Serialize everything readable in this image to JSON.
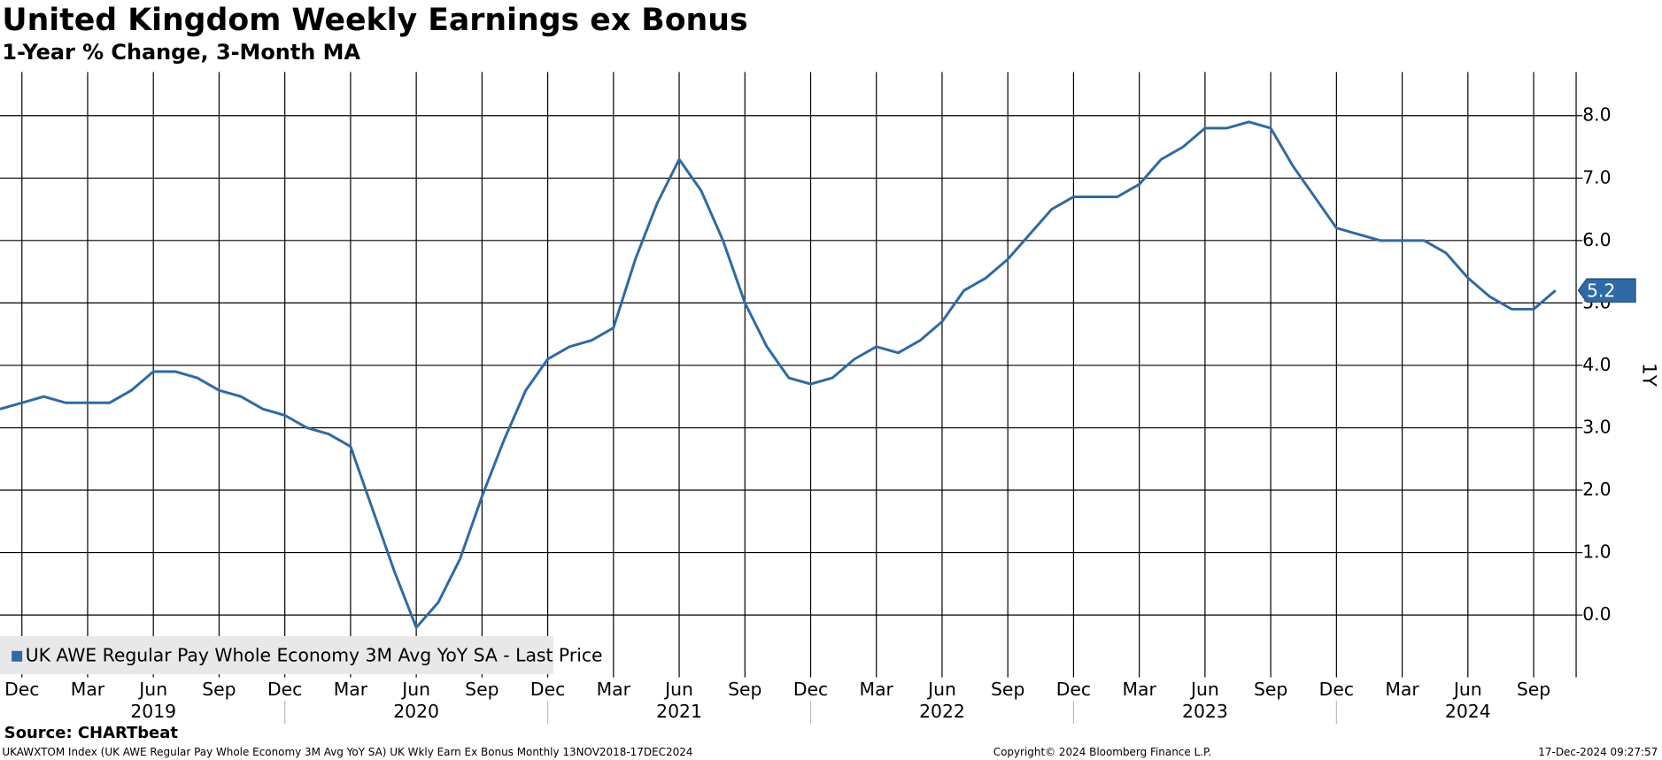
{
  "chart_data": {
    "type": "line",
    "title": "United Kingdom Weekly Earnings ex Bonus",
    "subtitle": "1-Year % Change, 3-Month MA",
    "y_axis_label": "1Y",
    "source": "Source: CHARTbeat",
    "footer_left": "UKAWXTOM Index (UK AWE Regular Pay Whole Economy 3M Avg YoY SA) UK Wkly Earn Ex Bonus  Monthly 13NOV2018-17DEC2024",
    "footer_center": "Copyright© 2024 Bloomberg Finance L.P.",
    "footer_right": "17-Dec-2024 09:27:57",
    "last_price_label": "5.2",
    "grid": true,
    "x": [
      "2018-11",
      "2018-12",
      "2019-01",
      "2019-02",
      "2019-03",
      "2019-04",
      "2019-05",
      "2019-06",
      "2019-07",
      "2019-08",
      "2019-09",
      "2019-10",
      "2019-11",
      "2019-12",
      "2020-01",
      "2020-02",
      "2020-03",
      "2020-04",
      "2020-05",
      "2020-06",
      "2020-07",
      "2020-08",
      "2020-09",
      "2020-10",
      "2020-11",
      "2020-12",
      "2021-01",
      "2021-02",
      "2021-03",
      "2021-04",
      "2021-05",
      "2021-06",
      "2021-07",
      "2021-08",
      "2021-09",
      "2021-10",
      "2021-11",
      "2021-12",
      "2022-01",
      "2022-02",
      "2022-03",
      "2022-04",
      "2022-05",
      "2022-06",
      "2022-07",
      "2022-08",
      "2022-09",
      "2022-10",
      "2022-11",
      "2022-12",
      "2023-01",
      "2023-02",
      "2023-03",
      "2023-04",
      "2023-05",
      "2023-06",
      "2023-07",
      "2023-08",
      "2023-09",
      "2023-10",
      "2023-11",
      "2023-12",
      "2024-01",
      "2024-02",
      "2024-03",
      "2024-04",
      "2024-05",
      "2024-06",
      "2024-07",
      "2024-08",
      "2024-09",
      "2024-10"
    ],
    "series": [
      {
        "name": "UK AWE Regular Pay Whole Economy 3M Avg YoY SA - Last Price",
        "color": "#2e6aa6",
        "values": [
          3.3,
          3.4,
          3.5,
          3.4,
          3.4,
          3.4,
          3.6,
          3.9,
          3.9,
          3.8,
          3.6,
          3.5,
          3.3,
          3.2,
          3.0,
          2.9,
          2.7,
          1.7,
          0.7,
          -0.2,
          0.2,
          0.9,
          1.9,
          2.8,
          3.6,
          4.1,
          4.3,
          4.4,
          4.6,
          5.7,
          6.6,
          7.3,
          6.8,
          6.0,
          5.0,
          4.3,
          3.8,
          3.7,
          3.8,
          4.1,
          4.3,
          4.2,
          4.4,
          4.7,
          5.2,
          5.4,
          5.7,
          6.1,
          6.5,
          6.7,
          6.7,
          6.7,
          6.9,
          7.3,
          7.5,
          7.8,
          7.8,
          7.9,
          7.8,
          7.2,
          6.7,
          6.2,
          6.1,
          6.0,
          6.0,
          6.0,
          5.8,
          5.4,
          5.1,
          4.9,
          4.9,
          5.2
        ]
      }
    ],
    "xticks": [
      {
        "value": "2018-12",
        "label": "Dec"
      },
      {
        "value": "2019-03",
        "label": "Mar"
      },
      {
        "value": "2019-06",
        "label": "Jun"
      },
      {
        "value": "2019-09",
        "label": "Sep"
      },
      {
        "value": "2019-12",
        "label": "Dec"
      },
      {
        "value": "2020-03",
        "label": "Mar"
      },
      {
        "value": "2020-06",
        "label": "Jun"
      },
      {
        "value": "2020-09",
        "label": "Sep"
      },
      {
        "value": "2020-12",
        "label": "Dec"
      },
      {
        "value": "2021-03",
        "label": "Mar"
      },
      {
        "value": "2021-06",
        "label": "Jun"
      },
      {
        "value": "2021-09",
        "label": "Sep"
      },
      {
        "value": "2021-12",
        "label": "Dec"
      },
      {
        "value": "2022-03",
        "label": "Mar"
      },
      {
        "value": "2022-06",
        "label": "Jun"
      },
      {
        "value": "2022-09",
        "label": "Sep"
      },
      {
        "value": "2022-12",
        "label": "Dec"
      },
      {
        "value": "2023-03",
        "label": "Mar"
      },
      {
        "value": "2023-06",
        "label": "Jun"
      },
      {
        "value": "2023-09",
        "label": "Sep"
      },
      {
        "value": "2023-12",
        "label": "Dec"
      },
      {
        "value": "2024-03",
        "label": "Mar"
      },
      {
        "value": "2024-06",
        "label": "Jun"
      },
      {
        "value": "2024-09",
        "label": "Sep"
      }
    ],
    "year_labels": [
      {
        "value": "2019-06",
        "label": "2019"
      },
      {
        "value": "2020-06",
        "label": "2020"
      },
      {
        "value": "2021-06",
        "label": "2021"
      },
      {
        "value": "2022-06",
        "label": "2022"
      },
      {
        "value": "2023-06",
        "label": "2023"
      },
      {
        "value": "2024-06",
        "label": "2024"
      }
    ],
    "ylim": [
      -1.0,
      8.7
    ],
    "yticks": [
      {
        "value": 0,
        "label": "0.0"
      },
      {
        "value": 1,
        "label": "1.0"
      },
      {
        "value": 2,
        "label": "2.0"
      },
      {
        "value": 3,
        "label": "3.0"
      },
      {
        "value": 4,
        "label": "4.0"
      },
      {
        "value": 5,
        "label": "5.0"
      },
      {
        "value": 6,
        "label": "6.0"
      },
      {
        "value": 7,
        "label": "7.0"
      },
      {
        "value": 8,
        "label": "8.0"
      }
    ]
  }
}
